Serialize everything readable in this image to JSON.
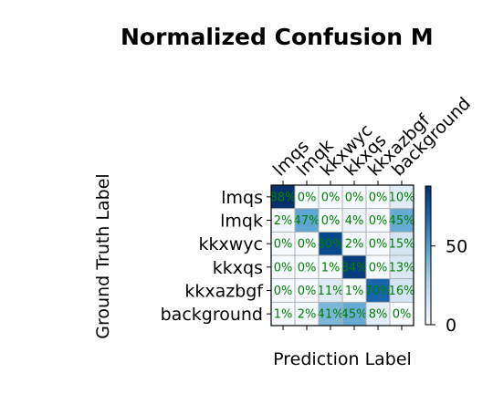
{
  "chart_data": {
    "type": "heatmap",
    "title": "Normalized Confusion M",
    "xlabel": "Prediction Label",
    "ylabel": "Ground Truth Label",
    "x_categories": [
      "lmqs",
      "lmqk",
      "kkxwyc",
      "kkxqs",
      "kkxazbgf",
      "background"
    ],
    "y_categories": [
      "lmqs",
      "lmqk",
      "kkxwyc",
      "kkxqs",
      "kkxazbgf",
      "background"
    ],
    "values": [
      [
        88,
        0,
        0,
        0,
        0,
        10
      ],
      [
        2,
        47,
        0,
        4,
        0,
        45
      ],
      [
        0,
        0,
        80,
        2,
        0,
        15
      ],
      [
        0,
        0,
        1,
        84,
        0,
        13
      ],
      [
        0,
        0,
        11,
        1,
        70,
        16
      ],
      [
        1,
        2,
        41,
        45,
        8,
        0
      ]
    ],
    "cell_labels": [
      [
        "88%",
        "0%",
        "0%",
        "0%",
        "0%",
        "10%"
      ],
      [
        "2%",
        "47%",
        "0%",
        "4%",
        "0%",
        "45%"
      ],
      [
        "0%",
        "0%",
        "80%",
        "2%",
        "0%",
        "15%"
      ],
      [
        "0%",
        "0%",
        "1%",
        "84%",
        "0%",
        "13%"
      ],
      [
        "0%",
        "0%",
        "11%",
        "1%",
        "70%",
        "16%"
      ],
      [
        "1%",
        "2%",
        "41%",
        "45%",
        "8%",
        "0%"
      ]
    ],
    "colormap": "Blues",
    "cell_text_color": "#008000",
    "grid_color": "#b0b0b0",
    "colorbar": {
      "range": [
        0,
        88
      ],
      "ticks": [
        0,
        50
      ],
      "tick_labels": [
        "0",
        "50"
      ]
    }
  }
}
